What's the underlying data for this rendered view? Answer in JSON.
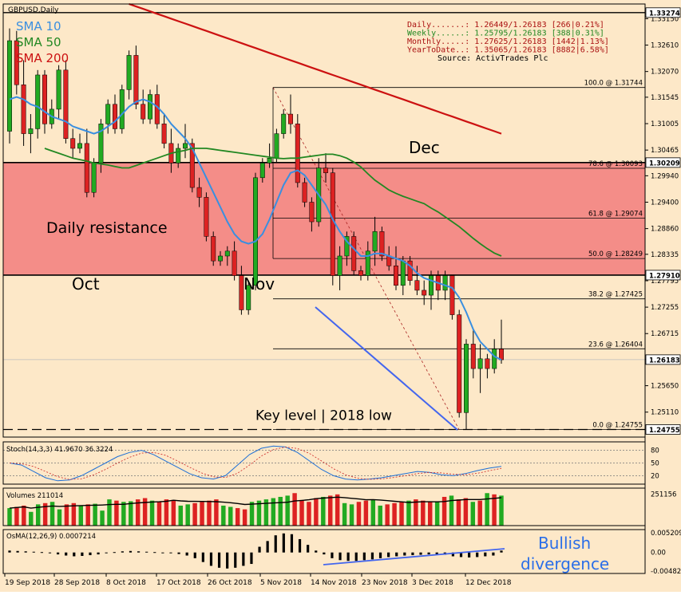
{
  "chart_data": {
    "type": "candlestick",
    "symbol": "GBPUSD,Daily",
    "colors": {
      "background": "#fde8c8",
      "bull": "#22aa22",
      "bear": "#dd2222",
      "sma10": "#3a8fe0",
      "sma50": "#228822",
      "sma200": "#cc1111",
      "resistance_zone": "#f27c7c",
      "divergence_line": "#4466ee",
      "volume_line": "#000000"
    },
    "legend": [
      {
        "name": "SMA 10",
        "color": "#3a8fe0"
      },
      {
        "name": "SMA 50",
        "color": "#228822"
      },
      {
        "name": "SMA 200",
        "color": "#cc1111"
      }
    ],
    "info_box": [
      "Daily.......: 1.26449/1.26183 [266|0.21%]",
      "Weekly......: 1.25795/1.26183 [388|0.31%]",
      "Monthly.....: 1.27625/1.26183 [1442|1.13%]",
      "YearToDate..: 1.35065/1.26183 [8882|6.58%]",
      "Source: ActivTrades Plc"
    ],
    "price_axis": {
      "range": [
        1.246,
        1.3345
      ],
      "ticks": [
        "1.33150",
        "1.32610",
        "1.32070",
        "1.31545",
        "1.31005",
        "1.30465",
        "1.29940",
        "1.29400",
        "1.28860",
        "1.28335",
        "1.27795",
        "1.27255",
        "1.26715",
        "1.26190",
        "1.25650",
        "1.25110"
      ],
      "ticks_values": [
        1.3315,
        1.3261,
        1.3207,
        1.31545,
        1.31005,
        1.30465,
        1.2994,
        1.294,
        1.2886,
        1.28335,
        1.27795,
        1.27255,
        1.26715,
        1.2619,
        1.2565,
        1.2511
      ],
      "highlight_labels": [
        {
          "text": "1.33274",
          "value": 1.33274
        },
        {
          "text": "1.30209",
          "value": 1.30209
        },
        {
          "text": "1.27910",
          "value": 1.2791
        },
        {
          "text": "1.26183",
          "value": 1.26183
        },
        {
          "text": "1.24755",
          "value": 1.24755
        }
      ]
    },
    "date_axis": [
      "19 Sep 2018",
      "28 Sep 2018",
      "8 Oct 2018",
      "17 Oct 2018",
      "26 Oct 2018",
      "5 Nov 2018",
      "14 Nov 2018",
      "23 Nov 2018",
      "3 Dec 2018",
      "12 Dec 2018"
    ],
    "resistance_zone": {
      "top": 1.30209,
      "bottom": 1.2791,
      "label": "Daily resistance"
    },
    "top_line": 1.33274,
    "key_level": {
      "value": 1.24755,
      "label": "Key level | 2018 low"
    },
    "month_labels": [
      "Oct",
      "Nov",
      "Dec"
    ],
    "fibonacci": [
      {
        "text": "100.0 @ 1.31744",
        "value": 1.31744
      },
      {
        "text": "78.6 @ 1.30093",
        "value": 1.30093
      },
      {
        "text": "61.8 @ 1.29074",
        "value": 1.29074
      },
      {
        "text": "50.0 @ 1.28249",
        "value": 1.28249
      },
      {
        "text": "38.2 @ 1.27425",
        "value": 1.27425
      },
      {
        "text": "23.6 @ 1.26404",
        "value": 1.26404
      },
      {
        "text": "0.0 @ 1.24755",
        "value": 1.24755
      }
    ],
    "candles": [
      [
        1.3085,
        1.3295,
        1.306,
        1.327
      ],
      [
        1.327,
        1.329,
        1.316,
        1.318
      ],
      [
        1.318,
        1.323,
        1.3055,
        1.308
      ],
      [
        1.308,
        1.312,
        1.304,
        1.309
      ],
      [
        1.309,
        1.321,
        1.307,
        1.32
      ],
      [
        1.32,
        1.321,
        1.308,
        1.31
      ],
      [
        1.31,
        1.315,
        1.309,
        1.313
      ],
      [
        1.313,
        1.322,
        1.311,
        1.321
      ],
      [
        1.321,
        1.323,
        1.306,
        1.307
      ],
      [
        1.307,
        1.309,
        1.303,
        1.305
      ],
      [
        1.305,
        1.308,
        1.304,
        1.306
      ],
      [
        1.306,
        1.309,
        1.295,
        1.296
      ],
      [
        1.296,
        1.303,
        1.295,
        1.302
      ],
      [
        1.302,
        1.311,
        1.3,
        1.31
      ],
      [
        1.31,
        1.315,
        1.308,
        1.314
      ],
      [
        1.314,
        1.316,
        1.308,
        1.309
      ],
      [
        1.309,
        1.318,
        1.308,
        1.317
      ],
      [
        1.317,
        1.325,
        1.315,
        1.324
      ],
      [
        1.324,
        1.326,
        1.313,
        1.314
      ],
      [
        1.314,
        1.317,
        1.31,
        1.311
      ],
      [
        1.311,
        1.317,
        1.31,
        1.316
      ],
      [
        1.316,
        1.318,
        1.309,
        1.31
      ],
      [
        1.31,
        1.312,
        1.305,
        1.306
      ],
      [
        1.306,
        1.309,
        1.3,
        1.302
      ],
      [
        1.302,
        1.306,
        1.301,
        1.305
      ],
      [
        1.305,
        1.31,
        1.303,
        1.306
      ],
      [
        1.306,
        1.307,
        1.296,
        1.297
      ],
      [
        1.297,
        1.299,
        1.293,
        1.295
      ],
      [
        1.295,
        1.296,
        1.286,
        1.287
      ],
      [
        1.287,
        1.288,
        1.281,
        1.282
      ],
      [
        1.282,
        1.284,
        1.281,
        1.283
      ],
      [
        1.283,
        1.285,
        1.281,
        1.284
      ],
      [
        1.284,
        1.286,
        1.278,
        1.279
      ],
      [
        1.279,
        1.281,
        1.271,
        1.272
      ],
      [
        1.272,
        1.278,
        1.271,
        1.277
      ],
      [
        1.277,
        1.3,
        1.276,
        1.299
      ],
      [
        1.299,
        1.303,
        1.298,
        1.302
      ],
      [
        1.302,
        1.306,
        1.301,
        1.303
      ],
      [
        1.303,
        1.309,
        1.302,
        1.308
      ],
      [
        1.308,
        1.313,
        1.307,
        1.312
      ],
      [
        1.312,
        1.316,
        1.308,
        1.31
      ],
      [
        1.31,
        1.312,
        1.297,
        1.298
      ],
      [
        1.298,
        1.299,
        1.293,
        1.294
      ],
      [
        1.294,
        1.295,
        1.288,
        1.29
      ],
      [
        1.29,
        1.303,
        1.289,
        1.301
      ],
      [
        1.301,
        1.304,
        1.298,
        1.3
      ],
      [
        1.3,
        1.301,
        1.277,
        1.279
      ],
      [
        1.279,
        1.285,
        1.276,
        1.283
      ],
      [
        1.283,
        1.288,
        1.281,
        1.287
      ],
      [
        1.287,
        1.288,
        1.279,
        1.28
      ],
      [
        1.28,
        1.281,
        1.278,
        1.279
      ],
      [
        1.279,
        1.286,
        1.278,
        1.284
      ],
      [
        1.284,
        1.291,
        1.281,
        1.288
      ],
      [
        1.288,
        1.289,
        1.282,
        1.283
      ],
      [
        1.283,
        1.285,
        1.28,
        1.281
      ],
      [
        1.281,
        1.285,
        1.276,
        1.277
      ],
      [
        1.277,
        1.283,
        1.275,
        1.282
      ],
      [
        1.282,
        1.283,
        1.277,
        1.278
      ],
      [
        1.278,
        1.281,
        1.275,
        1.276
      ],
      [
        1.276,
        1.278,
        1.273,
        1.275
      ],
      [
        1.275,
        1.28,
        1.272,
        1.279
      ],
      [
        1.279,
        1.28,
        1.274,
        1.276
      ],
      [
        1.276,
        1.28,
        1.274,
        1.279
      ],
      [
        1.279,
        1.279,
        1.27,
        1.271
      ],
      [
        1.271,
        1.272,
        1.25,
        1.251
      ],
      [
        1.251,
        1.266,
        1.2476,
        1.265
      ],
      [
        1.265,
        1.268,
        1.258,
        1.26
      ],
      [
        1.26,
        1.265,
        1.255,
        1.262
      ],
      [
        1.262,
        1.263,
        1.258,
        1.26
      ],
      [
        1.26,
        1.266,
        1.259,
        1.264
      ],
      [
        1.264,
        1.27,
        1.261,
        1.2618
      ]
    ],
    "sma10": [
      1.315,
      1.3155,
      1.315,
      1.314,
      1.3135,
      1.3125,
      1.3115,
      1.311,
      1.3105,
      1.3095,
      1.309,
      1.3085,
      1.308,
      1.3085,
      1.3095,
      1.3105,
      1.312,
      1.3135,
      1.3145,
      1.315,
      1.3145,
      1.3135,
      1.312,
      1.31,
      1.3085,
      1.307,
      1.305,
      1.302,
      1.299,
      1.296,
      1.293,
      1.29,
      1.2875,
      1.286,
      1.2855,
      1.286,
      1.2875,
      1.2905,
      1.294,
      1.2975,
      1.3,
      1.3005,
      1.2995,
      1.2975,
      1.2955,
      1.2935,
      1.2905,
      1.288,
      1.286,
      1.2845,
      1.283,
      1.283,
      1.2835,
      1.2835,
      1.283,
      1.2825,
      1.282,
      1.281,
      1.2795,
      1.2785,
      1.278,
      1.2775,
      1.277,
      1.2765,
      1.2745,
      1.2715,
      1.268,
      1.2655,
      1.264,
      1.2625,
      1.2618
    ],
    "sma50": [
      1.305,
      1.3045,
      1.304,
      1.3035,
      1.303,
      1.3027,
      1.3024,
      1.302,
      1.3018,
      1.3016,
      1.3013,
      1.301,
      1.301,
      1.3015,
      1.302,
      1.3025,
      1.303,
      1.3035,
      1.304,
      1.3043,
      1.3046,
      1.305,
      1.305,
      1.305,
      1.3048,
      1.3046,
      1.3044,
      1.3042,
      1.304,
      1.3038,
      1.3036,
      1.3034,
      1.3032,
      1.303,
      1.3029,
      1.303,
      1.303,
      1.3032,
      1.3034,
      1.3036,
      1.3038,
      1.3038,
      1.3035,
      1.303,
      1.3022,
      1.3012,
      1.2998,
      1.2985,
      1.2975,
      1.2965,
      1.2958,
      1.2952,
      1.2947,
      1.2942,
      1.2937,
      1.2928,
      1.292,
      1.291,
      1.29,
      1.289,
      1.2878,
      1.2866,
      1.2855,
      1.2845,
      1.2836,
      1.283
    ],
    "sma200": [
      1.3345,
      1.334,
      1.3335,
      1.333,
      1.3325,
      1.332,
      1.3315,
      1.331,
      1.3305,
      1.33,
      1.3295,
      1.329,
      1.3285,
      1.328,
      1.3275,
      1.327,
      1.3265,
      1.326,
      1.3255,
      1.325,
      1.3245,
      1.324,
      1.3235,
      1.323,
      1.3225,
      1.322,
      1.3215,
      1.321,
      1.3205,
      1.32,
      1.3195,
      1.319,
      1.3185,
      1.318,
      1.3175,
      1.317,
      1.3165,
      1.316,
      1.3155,
      1.315,
      1.3145,
      1.314,
      1.3135,
      1.313,
      1.3125,
      1.312,
      1.3115,
      1.311,
      1.3105,
      1.31,
      1.3095,
      1.309,
      1.3085,
      1.308
    ],
    "stochastic": {
      "label": "Stoch(14,3,3) 41.9670 36.3224",
      "levels": [
        "80",
        "50",
        "20"
      ],
      "levels_values": [
        80,
        50,
        20
      ],
      "k": [
        50,
        45,
        30,
        15,
        8,
        10,
        20,
        35,
        50,
        65,
        75,
        80,
        70,
        55,
        40,
        25,
        15,
        12,
        20,
        45,
        70,
        85,
        90,
        88,
        75,
        55,
        35,
        20,
        12,
        10,
        12,
        15,
        20,
        25,
        30,
        28,
        22,
        20,
        25,
        32,
        38,
        42
      ]
    },
    "volumes": {
      "label": "Volumes 211014",
      "ticks": [
        "251156"
      ],
      "ticks_values": [
        251156
      ],
      "max": 300000,
      "bars": [
        140000,
        150000,
        160000,
        110000,
        170000,
        180000,
        190000,
        130000,
        170000,
        180000,
        160000,
        170000,
        175000,
        120000,
        210000,
        200000,
        190000,
        195000,
        210000,
        220000,
        200000,
        190000,
        210000,
        205000,
        160000,
        170000,
        180000,
        190000,
        200000,
        210000,
        160000,
        150000,
        140000,
        130000,
        190000,
        200000,
        210000,
        220000,
        230000,
        240000,
        260000,
        200000,
        190000,
        220000,
        230000,
        240000,
        250000,
        180000,
        170000,
        190000,
        200000,
        210000,
        160000,
        170000,
        180000,
        190000,
        200000,
        210000,
        200000,
        190000,
        195000,
        230000,
        240000,
        210000,
        220000,
        190000,
        200000,
        260000,
        250000,
        240000
      ]
    },
    "osma": {
      "label": "OsMA(12,26,9) 0.0007214",
      "ticks": [
        "0.005209",
        "0.00",
        "-0.004827"
      ],
      "ticks_values": [
        0.005209,
        0,
        -0.004827
      ],
      "range": [
        -0.0055,
        0.006
      ],
      "values": [
        0.0005,
        0.0004,
        0.0003,
        0.0002,
        0.0001,
        -0.0002,
        -0.0005,
        -0.0008,
        -0.001,
        -0.0009,
        -0.0007,
        -0.0005,
        -0.0002,
        0.0001,
        0.0003,
        0.0004,
        0.0003,
        0.0002,
        0.0001,
        0.0,
        -0.0002,
        -0.0004,
        -0.0008,
        -0.0015,
        -0.0025,
        -0.0035,
        -0.004,
        -0.0042,
        -0.004,
        -0.0035,
        -0.003,
        0.0015,
        0.003,
        0.0045,
        0.005,
        0.0048,
        0.0035,
        0.002,
        0.0005,
        -0.0005,
        -0.0015,
        -0.002,
        -0.0022,
        -0.0022,
        -0.002,
        -0.0018,
        -0.0015,
        -0.0012,
        -0.001,
        -0.0008,
        -0.0007,
        -0.0006,
        -0.0005,
        -0.0005,
        -0.0006,
        -0.001,
        -0.0012,
        -0.0013,
        -0.0012,
        -0.001,
        -0.0008,
        0.0005
      ]
    },
    "annotations": [
      {
        "text": "Bullish",
        "color": "#2a6ee8"
      },
      {
        "text": "divergence",
        "color": "#2a6ee8"
      }
    ]
  }
}
